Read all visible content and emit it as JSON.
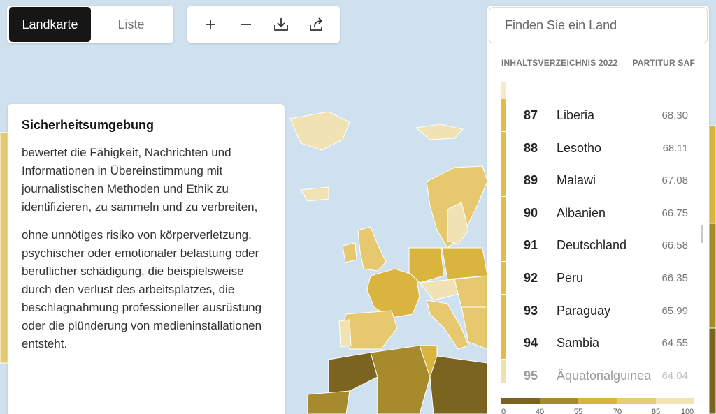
{
  "view_toggle": {
    "map_label": "Landkarte",
    "list_label": "Liste"
  },
  "tools": [
    {
      "name": "zoom-in-icon",
      "glyph": "+"
    },
    {
      "name": "zoom-out-icon",
      "glyph": "−"
    },
    {
      "name": "download-icon"
    },
    {
      "name": "share-icon"
    }
  ],
  "info": {
    "title": "Sicherheitsumgebung",
    "paragraph1": "bewertet die Fähigkeit, Nachrichten und Informationen in Übereinstimmung mit journalistischen Methoden und Ethik zu identifizieren, zu sammeln und zu verbreiten,",
    "paragraph2": "ohne unnötiges risiko von körperverletzung, psychischer oder emotionaler belastung oder beruflicher schädigung, die beispielsweise durch den verlust des arbeitsplatzes, die beschlagnahmung professioneller ausrüstung oder die plünderung von medieninstallationen entsteht."
  },
  "ranking": {
    "search_placeholder": "Finden Sie ein Land",
    "header_left": "INHALTSVERZEICHNIS 2022",
    "header_right": "PARTITUR SAF",
    "rows": [
      {
        "rank": "87",
        "country": "Liberia",
        "score": "68.30"
      },
      {
        "rank": "88",
        "country": "Lesotho",
        "score": "68.11"
      },
      {
        "rank": "89",
        "country": "Malawi",
        "score": "67.08"
      },
      {
        "rank": "90",
        "country": "Albanien",
        "score": "66.75"
      },
      {
        "rank": "91",
        "country": "Deutschland",
        "score": "66.58"
      },
      {
        "rank": "92",
        "country": "Peru",
        "score": "66.35"
      },
      {
        "rank": "93",
        "country": "Paraguay",
        "score": "65.99"
      },
      {
        "rank": "94",
        "country": "Sambia",
        "score": "64.55"
      },
      {
        "rank": "95",
        "country": "Äquatorialguinea",
        "score": "64.04"
      }
    ],
    "bar_color": "#e3bb48"
  },
  "legend": {
    "colors": [
      "#7b6420",
      "#a78a2c",
      "#d9b43e",
      "#e8cc74",
      "#f3e4b4"
    ],
    "labels": [
      "0",
      "40",
      "55",
      "70",
      "85",
      "100"
    ]
  },
  "colors": {
    "sea": "#cfe1ef",
    "land_darkest": "#7b6420",
    "land_dark": "#a78a2c",
    "land_mid": "#d9b43e",
    "land_light": "#e8cc74",
    "land_lightest": "#f3e4b4"
  }
}
